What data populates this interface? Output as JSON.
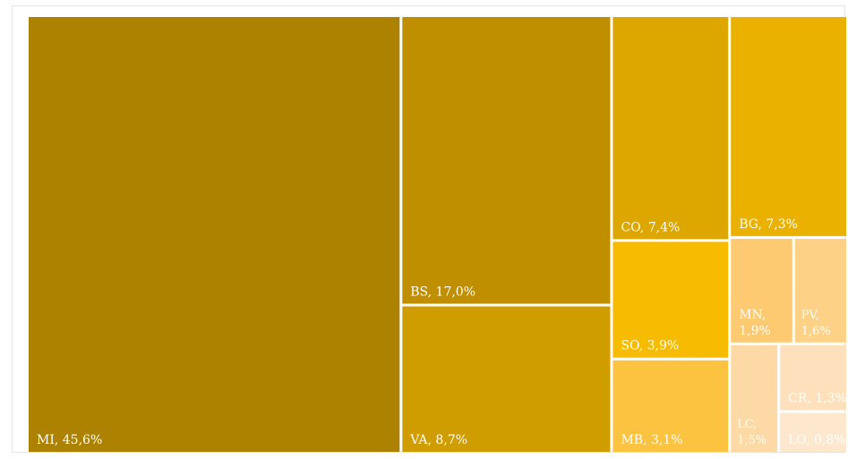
{
  "chart_data": {
    "type": "treemap",
    "title": "",
    "tiles": [
      {
        "code": "MI",
        "value": 45.6,
        "label": "MI, 45,6%",
        "color": "#AD8200",
        "text_color": "#ffffff",
        "wrap": false
      },
      {
        "code": "BS",
        "value": 17.0,
        "label": "BS, 17,0%",
        "color": "#BF8F00",
        "text_color": "#ffffff",
        "wrap": false
      },
      {
        "code": "VA",
        "value": 8.7,
        "label": "VA, 8,7%",
        "color": "#D09D00",
        "text_color": "#ffffff",
        "wrap": false
      },
      {
        "code": "CO",
        "value": 7.4,
        "label": "CO, 7,4%",
        "color": "#DDA700",
        "text_color": "#ffffff",
        "wrap": false
      },
      {
        "code": "BG",
        "value": 7.3,
        "label": "BG, 7,3%",
        "color": "#EBB100",
        "text_color": "#ffffff",
        "wrap": false
      },
      {
        "code": "SO",
        "value": 3.9,
        "label": "SO, 3,9%",
        "color": "#F7BB00",
        "text_color": "#ffffff",
        "wrap": false
      },
      {
        "code": "MB",
        "value": 3.1,
        "label": "MB, 3,1%",
        "color": "#FCC341",
        "text_color": "#ffffff",
        "wrap": false
      },
      {
        "code": "MN",
        "value": 1.9,
        "label": "MN, 1,9%",
        "color": "#FDCA72",
        "text_color": "#ffffff",
        "wrap": true
      },
      {
        "code": "PV",
        "value": 1.6,
        "label": "PV, 1,6%",
        "color": "#FDD186",
        "text_color": "#ffffff",
        "wrap": true
      },
      {
        "code": "LC",
        "value": 1.5,
        "label": "LC, 1,5%",
        "color": "#FDD9A6",
        "text_color": "#ffffff",
        "wrap": true
      },
      {
        "code": "CR",
        "value": 1.3,
        "label": "CR, 1,3%",
        "color": "#FEE1BC",
        "text_color": "#ffffff",
        "wrap": false
      },
      {
        "code": "LO",
        "value": 0.8,
        "label": "LO, 0,8%",
        "color": "#FEE8CD",
        "text_color": "#ffffff",
        "wrap": false
      }
    ]
  }
}
